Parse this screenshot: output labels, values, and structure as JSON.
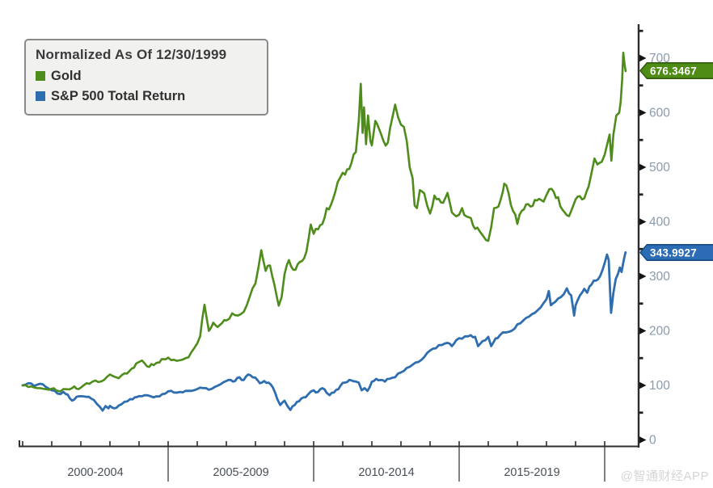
{
  "legend": {
    "title": "Normalized As Of 12/30/1999"
  },
  "watermark": {
    "text": "@智通财经APP"
  },
  "colors": {
    "gold_line": "#4e8c1b",
    "gold_badge_fill": "#4e8c15",
    "gold_badge_border": "#2f5c0d",
    "sp_line": "#2e6eb0",
    "sp_badge_fill": "#2c6cb4",
    "sp_badge_border": "#164a80",
    "axis": "#2d2d2d",
    "y_tick_label": "#8a9aae",
    "x_tick_label": "#494f57"
  },
  "chart_data": {
    "type": "line",
    "title": "Normalized As Of 12/30/1999",
    "x_axis": {
      "range": [
        2000,
        2020.75
      ],
      "group_labels": [
        "2000-2004",
        "2005-2009",
        "2010-2014",
        "2015-2019"
      ],
      "group_boundaries": [
        2000,
        2005,
        2010,
        2015,
        2020
      ],
      "year_tick_step": 1
    },
    "y_axis": {
      "side": "right",
      "range": [
        0,
        760
      ],
      "major_ticks": [
        0,
        100,
        200,
        300,
        400,
        500,
        600,
        700
      ],
      "minor_ticks": [
        50,
        150,
        250,
        350,
        450,
        550,
        650,
        750
      ]
    },
    "series": [
      {
        "name": "Gold",
        "color": "#4e8c1b",
        "last_label": "676.3467",
        "last_value": 676.3467,
        "points": [
          [
            2000.0,
            100
          ],
          [
            2000.2,
            97
          ],
          [
            2000.4,
            96
          ],
          [
            2000.6,
            95
          ],
          [
            2000.8,
            93
          ],
          [
            2001.0,
            94
          ],
          [
            2001.15,
            91
          ],
          [
            2001.3,
            89
          ],
          [
            2001.5,
            93
          ],
          [
            2001.7,
            95
          ],
          [
            2001.85,
            94
          ],
          [
            2002.0,
            96
          ],
          [
            2002.2,
            104
          ],
          [
            2002.4,
            107
          ],
          [
            2002.6,
            106
          ],
          [
            2002.8,
            110
          ],
          [
            2003.0,
            120
          ],
          [
            2003.15,
            116
          ],
          [
            2003.3,
            113
          ],
          [
            2003.5,
            122
          ],
          [
            2003.75,
            131
          ],
          [
            2003.9,
            140
          ],
          [
            2004.0,
            143
          ],
          [
            2004.2,
            140
          ],
          [
            2004.35,
            134
          ],
          [
            2004.5,
            137
          ],
          [
            2004.7,
            142
          ],
          [
            2004.85,
            148
          ],
          [
            2005.0,
            151
          ],
          [
            2005.2,
            147
          ],
          [
            2005.4,
            146
          ],
          [
            2005.6,
            150
          ],
          [
            2005.8,
            161
          ],
          [
            2006.0,
            177
          ],
          [
            2006.1,
            190
          ],
          [
            2006.25,
            248
          ],
          [
            2006.4,
            200
          ],
          [
            2006.55,
            215
          ],
          [
            2006.7,
            207
          ],
          [
            2006.85,
            214
          ],
          [
            2007.0,
            219
          ],
          [
            2007.2,
            232
          ],
          [
            2007.4,
            228
          ],
          [
            2007.6,
            235
          ],
          [
            2007.8,
            262
          ],
          [
            2007.9,
            278
          ],
          [
            2008.0,
            287
          ],
          [
            2008.2,
            348
          ],
          [
            2008.35,
            310
          ],
          [
            2008.5,
            320
          ],
          [
            2008.65,
            285
          ],
          [
            2008.8,
            246
          ],
          [
            2008.9,
            262
          ],
          [
            2009.0,
            304
          ],
          [
            2009.15,
            330
          ],
          [
            2009.3,
            312
          ],
          [
            2009.45,
            322
          ],
          [
            2009.6,
            328
          ],
          [
            2009.75,
            345
          ],
          [
            2009.9,
            395
          ],
          [
            2010.0,
            378
          ],
          [
            2010.15,
            386
          ],
          [
            2010.3,
            396
          ],
          [
            2010.45,
            425
          ],
          [
            2010.6,
            432
          ],
          [
            2010.75,
            456
          ],
          [
            2010.9,
            480
          ],
          [
            2011.0,
            490
          ],
          [
            2011.15,
            496
          ],
          [
            2011.3,
            508
          ],
          [
            2011.45,
            528
          ],
          [
            2011.55,
            585
          ],
          [
            2011.62,
            653
          ],
          [
            2011.68,
            563
          ],
          [
            2011.73,
            610
          ],
          [
            2011.8,
            542
          ],
          [
            2011.87,
            595
          ],
          [
            2011.95,
            548
          ],
          [
            2012.0,
            540
          ],
          [
            2012.12,
            585
          ],
          [
            2012.25,
            570
          ],
          [
            2012.4,
            548
          ],
          [
            2012.55,
            545
          ],
          [
            2012.7,
            590
          ],
          [
            2012.8,
            615
          ],
          [
            2012.9,
            592
          ],
          [
            2013.0,
            578
          ],
          [
            2013.1,
            574
          ],
          [
            2013.2,
            548
          ],
          [
            2013.3,
            500
          ],
          [
            2013.4,
            480
          ],
          [
            2013.47,
            430
          ],
          [
            2013.55,
            425
          ],
          [
            2013.65,
            458
          ],
          [
            2013.8,
            452
          ],
          [
            2013.9,
            430
          ],
          [
            2014.0,
            415
          ],
          [
            2014.15,
            448
          ],
          [
            2014.3,
            442
          ],
          [
            2014.45,
            435
          ],
          [
            2014.6,
            453
          ],
          [
            2014.75,
            417
          ],
          [
            2014.9,
            410
          ],
          [
            2015.0,
            413
          ],
          [
            2015.1,
            425
          ],
          [
            2015.25,
            410
          ],
          [
            2015.4,
            407
          ],
          [
            2015.55,
            387
          ],
          [
            2015.7,
            383
          ],
          [
            2015.85,
            372
          ],
          [
            2016.0,
            365
          ],
          [
            2016.1,
            390
          ],
          [
            2016.2,
            425
          ],
          [
            2016.35,
            428
          ],
          [
            2016.5,
            455
          ],
          [
            2016.55,
            470
          ],
          [
            2016.7,
            452
          ],
          [
            2016.85,
            420
          ],
          [
            2017.0,
            396
          ],
          [
            2017.15,
            420
          ],
          [
            2017.3,
            432
          ],
          [
            2017.45,
            428
          ],
          [
            2017.6,
            440
          ],
          [
            2017.75,
            442
          ],
          [
            2017.9,
            437
          ],
          [
            2018.0,
            449
          ],
          [
            2018.1,
            460
          ],
          [
            2018.25,
            455
          ],
          [
            2018.4,
            445
          ],
          [
            2018.55,
            422
          ],
          [
            2018.7,
            412
          ],
          [
            2018.85,
            420
          ],
          [
            2019.0,
            441
          ],
          [
            2019.15,
            447
          ],
          [
            2019.3,
            443
          ],
          [
            2019.45,
            465
          ],
          [
            2019.55,
            490
          ],
          [
            2019.65,
            516
          ],
          [
            2019.75,
            505
          ],
          [
            2019.9,
            510
          ],
          [
            2020.0,
            523
          ],
          [
            2020.1,
            545
          ],
          [
            2020.17,
            560
          ],
          [
            2020.23,
            512
          ],
          [
            2020.3,
            560
          ],
          [
            2020.4,
            595
          ],
          [
            2020.5,
            600
          ],
          [
            2020.55,
            620
          ],
          [
            2020.6,
            660
          ],
          [
            2020.64,
            710
          ],
          [
            2020.68,
            690
          ],
          [
            2020.72,
            676.3467
          ]
        ]
      },
      {
        "name": "S&P 500 Total Return",
        "color": "#2e6eb0",
        "last_label": "343.9927",
        "last_value": 343.9927,
        "points": [
          [
            2000.0,
            100
          ],
          [
            2000.2,
            104
          ],
          [
            2000.4,
            99
          ],
          [
            2000.6,
            103
          ],
          [
            2000.8,
            97
          ],
          [
            2001.0,
            90.9
          ],
          [
            2001.2,
            85
          ],
          [
            2001.4,
            88
          ],
          [
            2001.55,
            83
          ],
          [
            2001.7,
            72
          ],
          [
            2001.85,
            79
          ],
          [
            2002.0,
            80.1
          ],
          [
            2002.2,
            79
          ],
          [
            2002.35,
            76
          ],
          [
            2002.55,
            66
          ],
          [
            2002.75,
            54
          ],
          [
            2002.85,
            62
          ],
          [
            2002.95,
            58
          ],
          [
            2003.0,
            62.4
          ],
          [
            2003.15,
            58
          ],
          [
            2003.3,
            63
          ],
          [
            2003.5,
            70
          ],
          [
            2003.7,
            75
          ],
          [
            2003.85,
            78
          ],
          [
            2004.0,
            80.3
          ],
          [
            2004.2,
            82
          ],
          [
            2004.4,
            80
          ],
          [
            2004.6,
            80
          ],
          [
            2004.8,
            84
          ],
          [
            2005.0,
            89
          ],
          [
            2005.2,
            87
          ],
          [
            2005.4,
            88
          ],
          [
            2005.6,
            90
          ],
          [
            2005.8,
            90
          ],
          [
            2006.0,
            93.4
          ],
          [
            2006.2,
            95
          ],
          [
            2006.4,
            92
          ],
          [
            2006.6,
            97
          ],
          [
            2006.8,
            102
          ],
          [
            2007.0,
            108.2
          ],
          [
            2007.15,
            110
          ],
          [
            2007.3,
            108
          ],
          [
            2007.45,
            115
          ],
          [
            2007.6,
            110
          ],
          [
            2007.75,
            120
          ],
          [
            2007.9,
            115
          ],
          [
            2008.0,
            114.1
          ],
          [
            2008.15,
            104
          ],
          [
            2008.3,
            108
          ],
          [
            2008.45,
            105
          ],
          [
            2008.6,
            96
          ],
          [
            2008.75,
            75
          ],
          [
            2008.85,
            64
          ],
          [
            2008.95,
            70
          ],
          [
            2009.0,
            71.9
          ],
          [
            2009.1,
            62
          ],
          [
            2009.2,
            55
          ],
          [
            2009.35,
            64
          ],
          [
            2009.5,
            71
          ],
          [
            2009.65,
            78
          ],
          [
            2009.8,
            83
          ],
          [
            2010.0,
            90.9
          ],
          [
            2010.15,
            88
          ],
          [
            2010.3,
            95
          ],
          [
            2010.45,
            86
          ],
          [
            2010.55,
            82
          ],
          [
            2010.7,
            87
          ],
          [
            2010.85,
            93
          ],
          [
            2011.0,
            104.6
          ],
          [
            2011.15,
            106
          ],
          [
            2011.3,
            109
          ],
          [
            2011.45,
            107
          ],
          [
            2011.55,
            105
          ],
          [
            2011.65,
            91
          ],
          [
            2011.75,
            95
          ],
          [
            2011.85,
            90
          ],
          [
            2012.0,
            106.8
          ],
          [
            2012.15,
            112
          ],
          [
            2012.3,
            110
          ],
          [
            2012.45,
            107
          ],
          [
            2012.6,
            112
          ],
          [
            2012.8,
            115
          ],
          [
            2013.0,
            123.9
          ],
          [
            2013.2,
            132
          ],
          [
            2013.4,
            138
          ],
          [
            2013.6,
            143
          ],
          [
            2013.8,
            152
          ],
          [
            2014.0,
            164
          ],
          [
            2014.2,
            168
          ],
          [
            2014.4,
            174
          ],
          [
            2014.6,
            178
          ],
          [
            2014.75,
            172
          ],
          [
            2014.9,
            183
          ],
          [
            2015.0,
            186.5
          ],
          [
            2015.2,
            190
          ],
          [
            2015.4,
            192
          ],
          [
            2015.55,
            189
          ],
          [
            2015.65,
            172
          ],
          [
            2015.8,
            181
          ],
          [
            2016.0,
            189.1
          ],
          [
            2016.1,
            172
          ],
          [
            2016.25,
            186
          ],
          [
            2016.4,
            192
          ],
          [
            2016.6,
            197
          ],
          [
            2016.8,
            200
          ],
          [
            2017.0,
            211.8
          ],
          [
            2017.2,
            219
          ],
          [
            2017.4,
            226
          ],
          [
            2017.6,
            233
          ],
          [
            2017.8,
            243
          ],
          [
            2018.0,
            258
          ],
          [
            2018.08,
            273
          ],
          [
            2018.15,
            247
          ],
          [
            2018.3,
            253
          ],
          [
            2018.5,
            262
          ],
          [
            2018.7,
            278
          ],
          [
            2018.85,
            265
          ],
          [
            2018.95,
            228
          ],
          [
            2019.0,
            246.6
          ],
          [
            2019.15,
            265
          ],
          [
            2019.3,
            277
          ],
          [
            2019.4,
            270
          ],
          [
            2019.55,
            285
          ],
          [
            2019.7,
            292
          ],
          [
            2019.85,
            301
          ],
          [
            2020.0,
            324.3
          ],
          [
            2020.08,
            340
          ],
          [
            2020.14,
            330
          ],
          [
            2020.22,
            233
          ],
          [
            2020.3,
            270
          ],
          [
            2020.38,
            295
          ],
          [
            2020.46,
            305
          ],
          [
            2020.52,
            316
          ],
          [
            2020.58,
            308
          ],
          [
            2020.64,
            325
          ],
          [
            2020.69,
            338
          ],
          [
            2020.72,
            343.9927
          ]
        ]
      }
    ]
  }
}
